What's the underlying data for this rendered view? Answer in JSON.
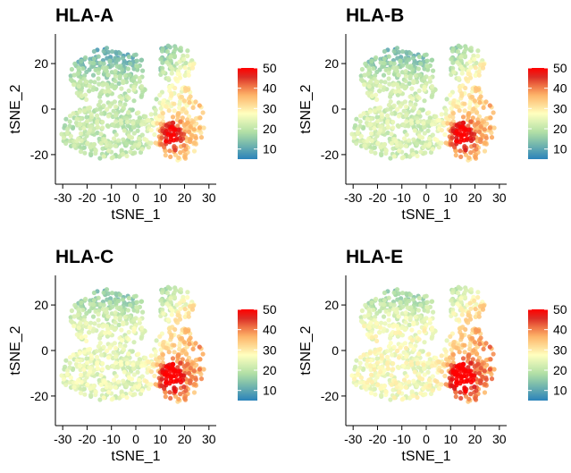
{
  "chart_data": [
    {
      "type": "scatter",
      "title": "HLA-A",
      "xlabel": "tSNE_1",
      "ylabel": "tSNE_2",
      "xticks": [
        "-30",
        "-20",
        "-10",
        "0",
        "10",
        "20",
        "30"
      ],
      "yticks": [
        "20",
        "0",
        "-20"
      ],
      "xlim": [
        -33,
        33
      ],
      "ylim": [
        -33,
        33
      ],
      "colorbar": {
        "ticks": [
          "50",
          "40",
          "30",
          "20",
          "10"
        ],
        "range": [
          5,
          50
        ]
      },
      "hot_cluster_peak": 50
    },
    {
      "type": "scatter",
      "title": "HLA-B",
      "xlabel": "tSNE_1",
      "ylabel": "tSNE_2",
      "xticks": [
        "-30",
        "-20",
        "-10",
        "0",
        "10",
        "20",
        "30"
      ],
      "yticks": [
        "20",
        "0",
        "-20"
      ],
      "xlim": [
        -33,
        33
      ],
      "ylim": [
        -33,
        33
      ],
      "colorbar": {
        "ticks": [
          "50",
          "40",
          "30",
          "20",
          "10"
        ],
        "range": [
          5,
          50
        ]
      },
      "hot_cluster_peak": 50
    },
    {
      "type": "scatter",
      "title": "HLA-C",
      "xlabel": "tSNE_1",
      "ylabel": "tSNE_2",
      "xticks": [
        "-30",
        "-20",
        "-10",
        "0",
        "10",
        "20",
        "30"
      ],
      "yticks": [
        "20",
        "0",
        "-20"
      ],
      "xlim": [
        -33,
        33
      ],
      "ylim": [
        -33,
        33
      ],
      "colorbar": {
        "ticks": [
          "50",
          "40",
          "30",
          "20",
          "10"
        ],
        "range": [
          5,
          50
        ]
      },
      "hot_cluster_peak": 50
    },
    {
      "type": "scatter",
      "title": "HLA-E",
      "xlabel": "tSNE_1",
      "ylabel": "tSNE_2",
      "xticks": [
        "-30",
        "-20",
        "-10",
        "0",
        "10",
        "20",
        "30"
      ],
      "yticks": [
        "20",
        "0",
        "-20"
      ],
      "xlim": [
        -33,
        33
      ],
      "ylim": [
        -33,
        33
      ],
      "colorbar": {
        "ticks": [
          "50",
          "40",
          "30",
          "20",
          "10"
        ],
        "range": [
          5,
          50
        ]
      },
      "hot_cluster_peak": 50
    }
  ],
  "palette": [
    "#2b83ba",
    "#abdda4",
    "#ffffbf",
    "#fdae61",
    "#d7191c",
    "#ff0000"
  ]
}
